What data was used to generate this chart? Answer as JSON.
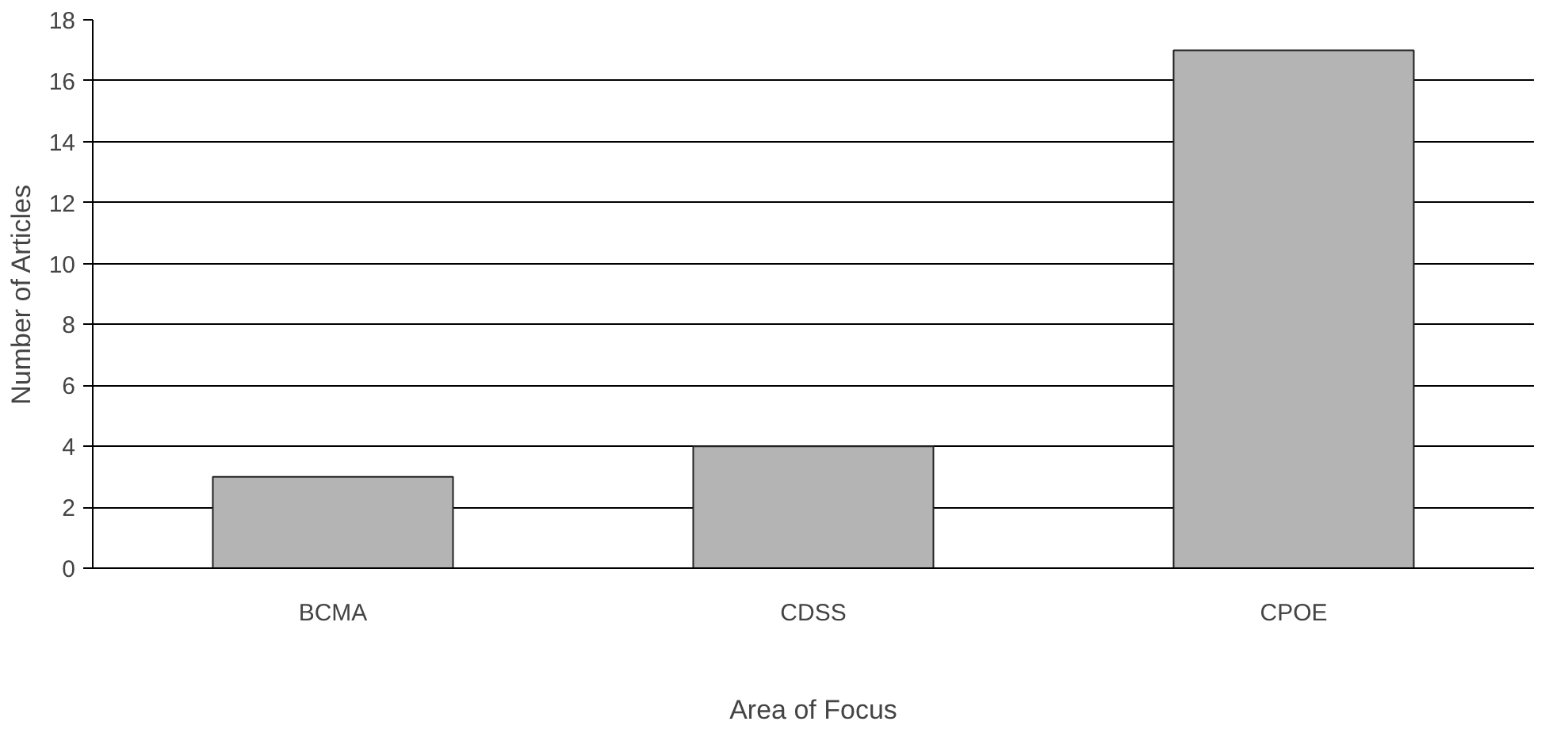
{
  "chart_data": {
    "type": "bar",
    "xlabel": "Area of Focus",
    "ylabel": "Number of Articles",
    "categories": [
      "BCMA",
      "CDSS",
      "CPOE"
    ],
    "values": [
      3,
      4,
      17
    ],
    "color": "#b4b4b4",
    "ylim": [
      0,
      18
    ],
    "yticks": [
      0,
      2,
      4,
      6,
      8,
      10,
      12,
      14,
      16,
      18
    ],
    "grid": "y"
  }
}
